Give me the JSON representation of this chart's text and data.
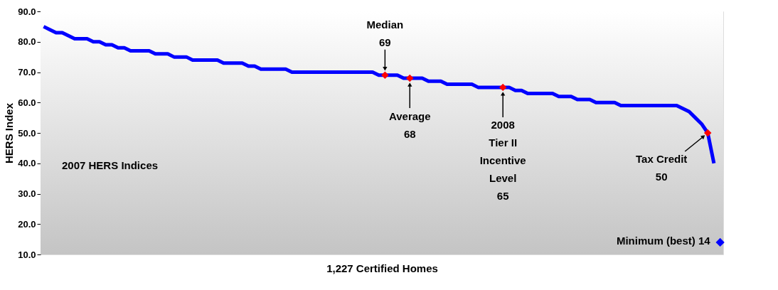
{
  "chart_data": {
    "type": "scatter",
    "xlabel": "1,227 Certified Homes",
    "ylabel": "HERS Index",
    "categories": [
      null,
      null,
      null,
      null,
      null,
      null,
      null,
      null,
      null,
      null,
      null,
      null,
      null,
      null,
      null,
      null,
      null,
      null,
      null,
      null,
      null,
      null,
      null,
      null,
      null,
      null,
      null,
      null,
      null,
      null,
      null,
      null,
      null,
      null,
      null,
      null,
      null,
      null,
      null,
      null,
      null,
      null,
      null,
      null,
      null,
      null,
      null,
      null,
      null,
      null,
      null,
      null,
      null,
      null,
      null,
      null,
      null,
      null,
      null,
      null,
      null,
      null,
      null,
      null,
      null,
      null,
      null,
      null,
      null,
      null,
      null,
      null,
      null,
      null,
      null,
      null,
      null,
      null,
      null,
      null,
      null,
      null,
      null,
      null,
      null,
      null,
      null,
      null,
      null,
      null,
      null,
      null,
      null,
      null,
      null,
      null,
      null,
      null,
      null,
      null,
      null,
      null,
      null,
      null,
      null,
      null,
      null,
      null,
      null,
      null
    ],
    "series": [
      {
        "type": "line",
        "color": "#0000ff",
        "values": [
          85,
          84,
          83,
          83,
          82,
          81,
          81,
          81,
          80,
          80,
          79,
          79,
          78,
          78,
          77,
          77,
          77,
          77,
          76,
          76,
          76,
          75,
          75,
          75,
          74,
          74,
          74,
          74,
          74,
          73,
          73,
          73,
          73,
          72,
          72,
          71,
          71,
          71,
          71,
          71,
          70,
          70,
          70,
          70,
          70,
          70,
          70,
          70,
          70,
          70,
          70,
          70,
          70,
          70,
          69,
          69,
          69,
          69,
          68,
          68,
          68,
          68,
          67,
          67,
          67,
          66,
          66,
          66,
          66,
          66,
          65,
          65,
          65,
          65,
          65,
          65,
          64,
          64,
          63,
          63,
          63,
          63,
          63,
          62,
          62,
          62,
          61,
          61,
          61,
          60,
          60,
          60,
          60,
          59,
          59,
          59,
          59,
          59,
          59,
          59,
          59,
          59,
          59,
          58,
          57,
          55,
          53,
          50,
          40,
          null
        ],
        "marker": "none"
      },
      {
        "color": "#ff0000",
        "values": [
          null,
          null,
          null,
          null,
          null,
          null,
          null,
          null,
          null,
          null,
          null,
          null,
          null,
          null,
          null,
          null,
          null,
          null,
          null,
          null,
          null,
          null,
          null,
          null,
          null,
          null,
          null,
          null,
          null,
          null,
          null,
          null,
          null,
          null,
          null,
          null,
          null,
          null,
          null,
          null,
          null,
          null,
          null,
          null,
          null,
          null,
          null,
          null,
          null,
          null,
          null,
          null,
          null,
          null,
          null,
          69,
          null,
          null,
          null,
          68,
          null,
          null,
          null,
          null,
          null,
          null,
          null,
          null,
          null,
          null,
          null,
          null,
          null,
          null,
          65,
          null,
          null,
          null,
          null,
          null,
          null,
          null,
          null,
          null,
          null,
          null,
          null,
          null,
          null,
          null,
          null,
          null,
          null,
          null,
          null,
          null,
          null,
          null,
          null,
          null,
          null,
          null,
          null,
          null,
          null,
          null,
          null,
          50,
          null,
          null
        ],
        "marker": "diamond"
      },
      {
        "color": "#0000ff",
        "values": [
          null,
          null,
          null,
          null,
          null,
          null,
          null,
          null,
          null,
          null,
          null,
          null,
          null,
          null,
          null,
          null,
          null,
          null,
          null,
          null,
          null,
          null,
          null,
          null,
          null,
          null,
          null,
          null,
          null,
          null,
          null,
          null,
          null,
          null,
          null,
          null,
          null,
          null,
          null,
          null,
          null,
          null,
          null,
          null,
          null,
          null,
          null,
          null,
          null,
          null,
          null,
          null,
          null,
          null,
          null,
          null,
          null,
          null,
          null,
          null,
          null,
          null,
          null,
          null,
          null,
          null,
          null,
          null,
          null,
          null,
          null,
          null,
          null,
          null,
          null,
          null,
          null,
          null,
          null,
          null,
          null,
          null,
          null,
          null,
          null,
          null,
          null,
          null,
          null,
          null,
          null,
          null,
          null,
          null,
          null,
          null,
          null,
          null,
          null,
          null,
          null,
          null,
          null,
          null,
          null,
          null,
          null,
          null,
          null,
          14
        ],
        "marker": "diamond"
      }
    ],
    "ylim": [
      10,
      90
    ],
    "yticks": [
      {
        "value": 10,
        "label": "10.0"
      },
      {
        "value": 20,
        "label": "20.0"
      },
      {
        "value": 30,
        "label": "30.0"
      },
      {
        "value": 40,
        "label": "40.0"
      },
      {
        "value": 50,
        "label": "50.0"
      },
      {
        "value": 60,
        "label": "60.0"
      },
      {
        "value": 70,
        "label": "70.0"
      },
      {
        "value": 80,
        "label": "80.0"
      },
      {
        "value": 90,
        "label": "90.0"
      }
    ],
    "annotations": [
      "Median\n69",
      "Average\n68",
      "2008\nTier II\nIncentive\nLevel\n65",
      "Tax Credit\n50",
      "Minimum (best)  14",
      "2007 HERS Indices"
    ],
    "tick_labels": "y"
  }
}
